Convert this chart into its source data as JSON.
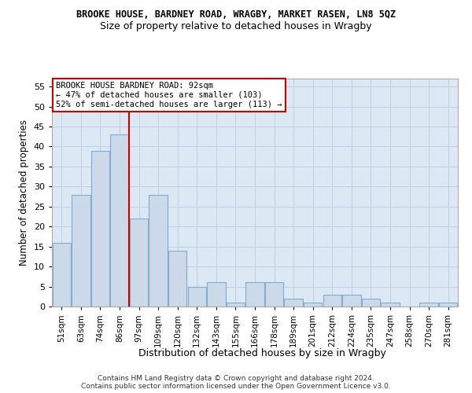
{
  "title": "BROOKE HOUSE, BARDNEY ROAD, WRAGBY, MARKET RASEN, LN8 5QZ",
  "subtitle": "Size of property relative to detached houses in Wragby",
  "xlabel": "Distribution of detached houses by size in Wragby",
  "ylabel": "Number of detached properties",
  "categories": [
    "51sqm",
    "63sqm",
    "74sqm",
    "86sqm",
    "97sqm",
    "109sqm",
    "120sqm",
    "132sqm",
    "143sqm",
    "155sqm",
    "166sqm",
    "178sqm",
    "189sqm",
    "201sqm",
    "212sqm",
    "224sqm",
    "235sqm",
    "247sqm",
    "258sqm",
    "270sqm",
    "281sqm"
  ],
  "values": [
    16,
    28,
    39,
    43,
    22,
    28,
    14,
    5,
    6,
    1,
    6,
    6,
    2,
    1,
    3,
    3,
    2,
    1,
    0,
    1,
    1
  ],
  "bar_color": "#ccd9e8",
  "bar_edge_color": "#7fadd4",
  "grid_color": "#bfcfdf",
  "background_color": "#dce9f5",
  "vline_x": 3.5,
  "vline_color": "#cc0000",
  "ylim": [
    0,
    57
  ],
  "yticks": [
    0,
    5,
    10,
    15,
    20,
    25,
    30,
    35,
    40,
    45,
    50,
    55
  ],
  "annotation_title": "BROOKE HOUSE BARDNEY ROAD: 92sqm",
  "annotation_line1": "← 47% of detached houses are smaller (103)",
  "annotation_line2": "52% of semi-detached houses are larger (113) →",
  "annotation_box_color": "#ffffff",
  "annotation_box_edge": "#cc0000",
  "footer1": "Contains HM Land Registry data © Crown copyright and database right 2024.",
  "footer2": "Contains public sector information licensed under the Open Government Licence v3.0."
}
